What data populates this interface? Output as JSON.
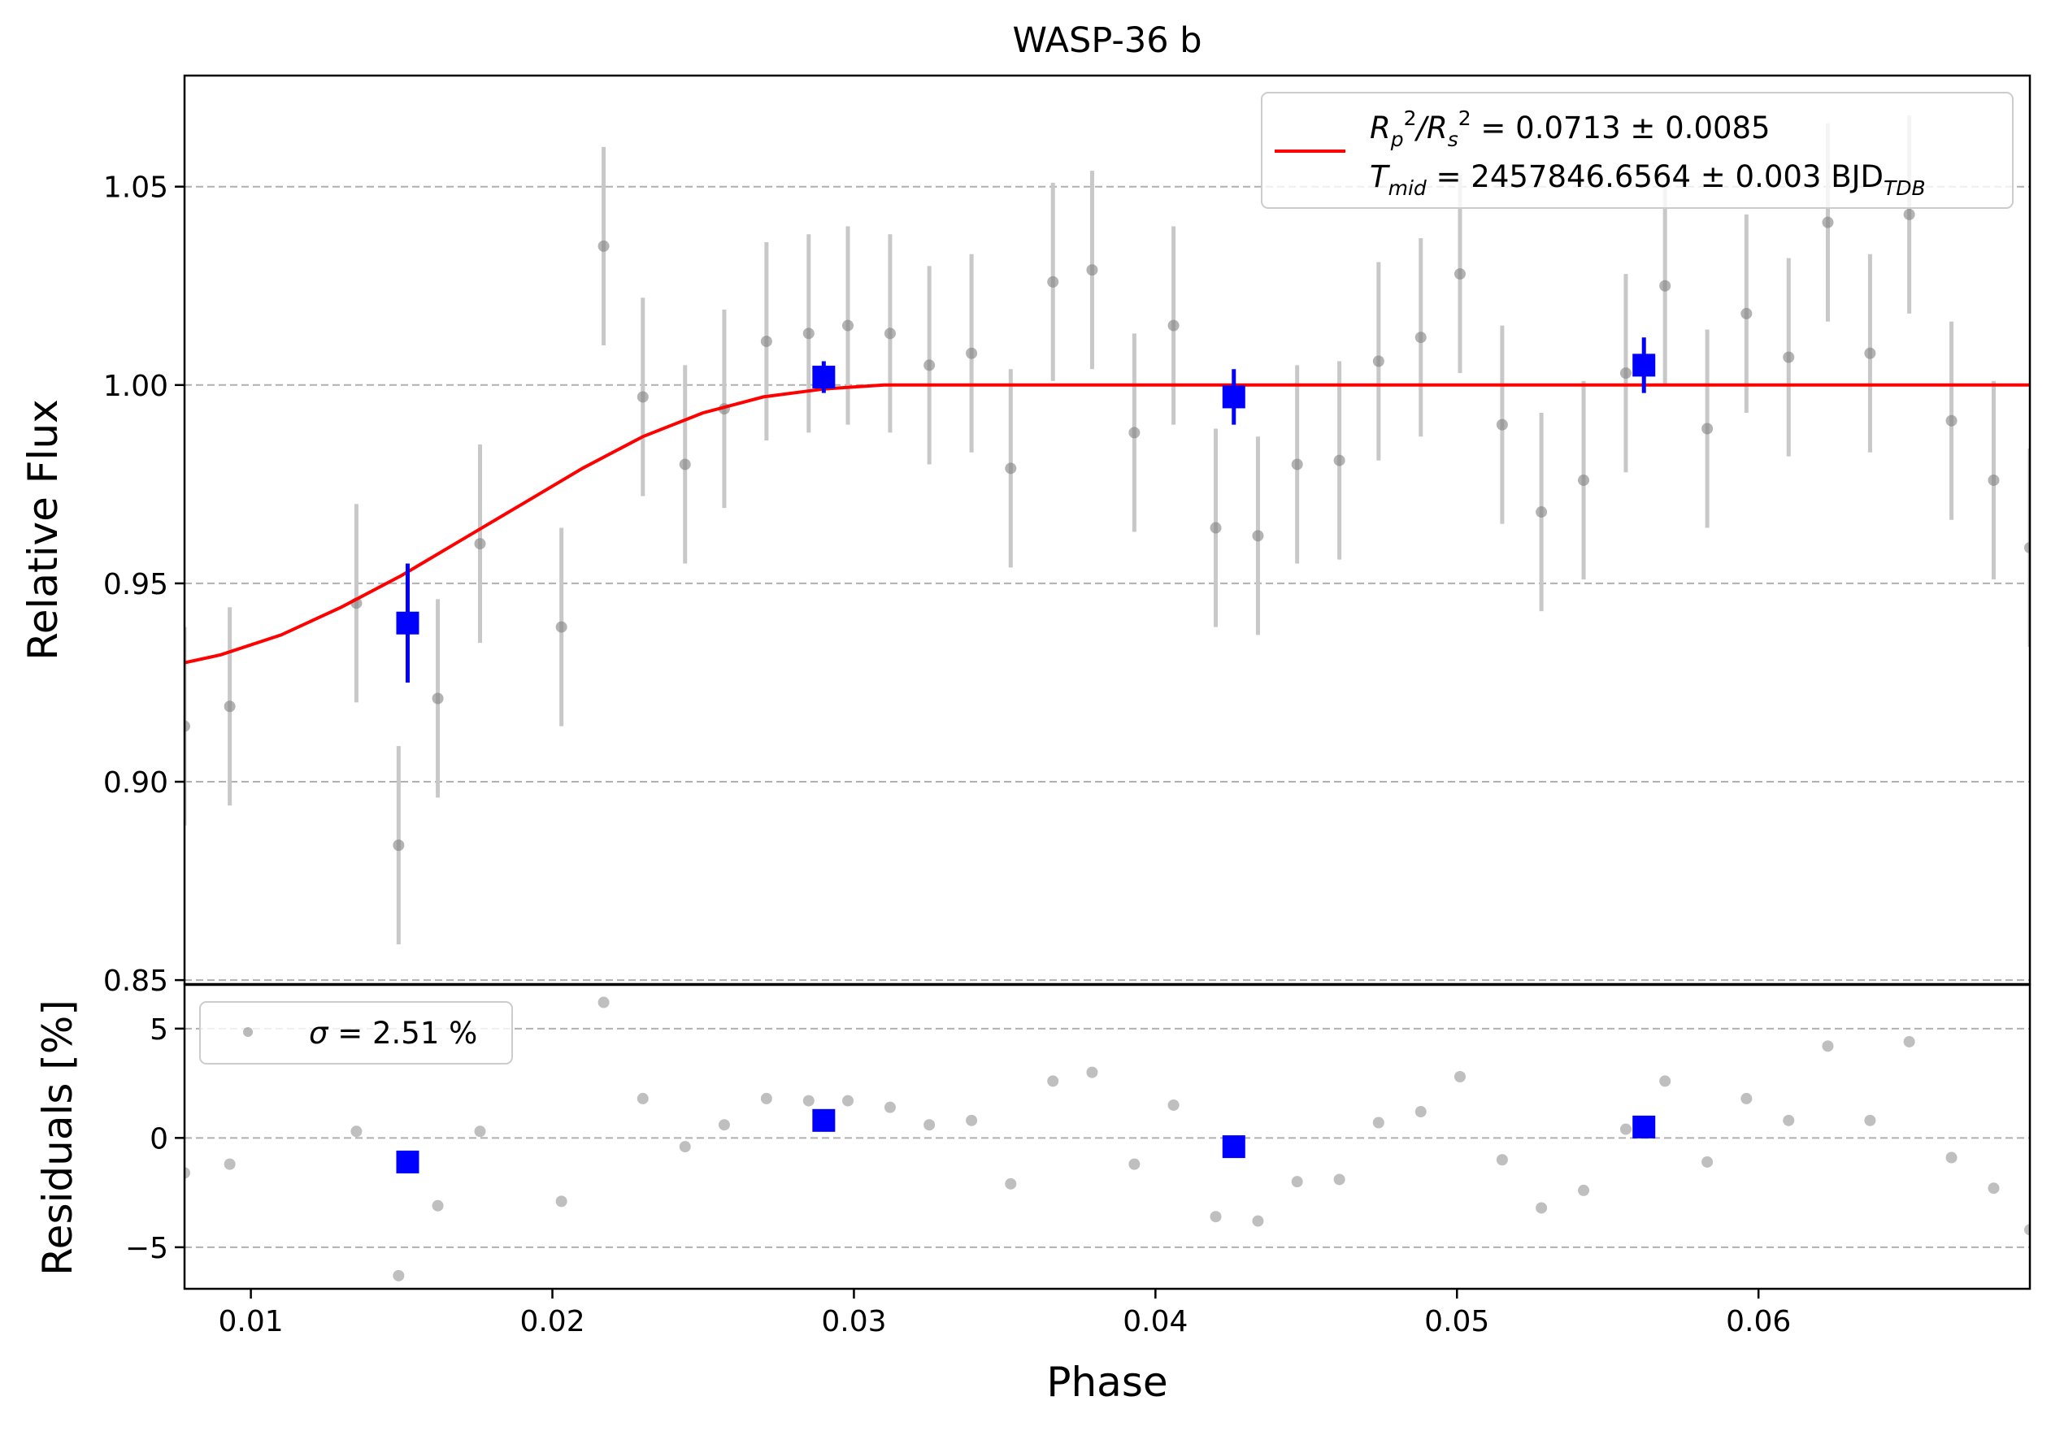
{
  "chart_data": [
    {
      "type": "scatter",
      "panel": "main",
      "title": "WASP-36 b",
      "xlabel": "",
      "ylabel": "Relative Flux",
      "xlim": [
        0.0078,
        0.069
      ],
      "ylim": [
        0.849,
        1.078
      ],
      "yticks": [
        0.85,
        0.9,
        0.95,
        1.0,
        1.05
      ],
      "ytick_labels": [
        "0.85",
        "0.90",
        "0.95",
        "1.00",
        "1.05"
      ],
      "grid": "horizontal dashed",
      "legend": {
        "placement": "top-right",
        "line_label_parts": [
          "R",
          "p",
          "2",
          "/R",
          "s",
          "2",
          " = 0.0713 ± 0.0085"
        ],
        "line2_parts": [
          "T",
          "mid",
          " = 2457846.6564 ± 0.003 BJD",
          "TDB"
        ]
      },
      "colors": {
        "raw": "#808080",
        "raw_err": "#c8c8c8",
        "binned": "#0000ff",
        "model": "#ff0000",
        "grid": "#b0b0b0"
      },
      "raw": {
        "x": [
          0.0078,
          0.0093,
          0.0135,
          0.0149,
          0.0162,
          0.0176,
          0.0203,
          0.0217,
          0.023,
          0.0244,
          0.0257,
          0.0271,
          0.0285,
          0.0298,
          0.0312,
          0.0325,
          0.0339,
          0.0352,
          0.0366,
          0.0379,
          0.0393,
          0.0406,
          0.042,
          0.0434,
          0.0447,
          0.0461,
          0.0474,
          0.0488,
          0.0501,
          0.0515,
          0.0528,
          0.0542,
          0.0556,
          0.0569,
          0.0583,
          0.0596,
          0.061,
          0.0623,
          0.0637,
          0.065,
          0.0664,
          0.0678,
          0.069
        ],
        "y": [
          0.914,
          0.919,
          0.945,
          0.884,
          0.921,
          0.96,
          0.939,
          1.035,
          0.997,
          0.98,
          0.994,
          1.011,
          1.013,
          1.015,
          1.013,
          1.005,
          1.008,
          0.979,
          1.026,
          1.029,
          0.988,
          1.015,
          0.964,
          0.962,
          0.98,
          0.981,
          1.006,
          1.012,
          1.028,
          0.99,
          0.968,
          0.976,
          1.003,
          1.025,
          0.989,
          1.018,
          1.007,
          1.041,
          1.008,
          1.043,
          0.991,
          0.976,
          0.959
        ],
        "yerr": 0.025
      },
      "binned": {
        "x": [
          0.0152,
          0.029,
          0.0426,
          0.0562
        ],
        "y": [
          0.94,
          1.002,
          0.997,
          1.005
        ],
        "yerr": [
          0.015,
          0.004,
          0.007,
          0.007
        ]
      },
      "model": {
        "x": [
          0.0078,
          0.009,
          0.011,
          0.013,
          0.015,
          0.017,
          0.019,
          0.021,
          0.023,
          0.025,
          0.027,
          0.029,
          0.031,
          0.069
        ],
        "y": [
          0.93,
          0.932,
          0.937,
          0.944,
          0.952,
          0.961,
          0.97,
          0.979,
          0.987,
          0.993,
          0.997,
          0.999,
          1.0,
          1.0
        ]
      }
    },
    {
      "type": "scatter",
      "panel": "residuals",
      "xlabel": "Phase",
      "ylabel": "Residuals [%]",
      "xlim": [
        0.0078,
        0.069
      ],
      "ylim": [
        -6.9,
        7.0
      ],
      "xticks": [
        0.01,
        0.02,
        0.03,
        0.04,
        0.05,
        0.06
      ],
      "xtick_labels": [
        "0.01",
        "0.02",
        "0.03",
        "0.04",
        "0.05",
        "0.06"
      ],
      "yticks": [
        -5,
        0,
        5
      ],
      "ytick_labels": [
        "−5",
        "0",
        "5"
      ],
      "grid": "horizontal dashed",
      "legend": {
        "placement": "top-left",
        "label_parts": [
          "σ",
          " = 2.51 %"
        ]
      },
      "raw": {
        "x": [
          0.0078,
          0.0093,
          0.0135,
          0.0149,
          0.0162,
          0.0176,
          0.0203,
          0.0217,
          0.023,
          0.0244,
          0.0257,
          0.0271,
          0.0285,
          0.0298,
          0.0312,
          0.0325,
          0.0339,
          0.0352,
          0.0366,
          0.0379,
          0.0393,
          0.0406,
          0.042,
          0.0434,
          0.0447,
          0.0461,
          0.0474,
          0.0488,
          0.0501,
          0.0515,
          0.0528,
          0.0542,
          0.0556,
          0.0569,
          0.0583,
          0.0596,
          0.061,
          0.0623,
          0.0637,
          0.065,
          0.0664,
          0.0678,
          0.069
        ],
        "y": [
          -1.6,
          -1.2,
          0.3,
          -6.3,
          -3.1,
          0.3,
          -2.9,
          6.2,
          1.8,
          -0.4,
          0.6,
          1.8,
          1.7,
          1.7,
          1.4,
          0.6,
          0.8,
          -2.1,
          2.6,
          3.0,
          -1.2,
          1.5,
          -3.6,
          -3.8,
          -2.0,
          -1.9,
          0.7,
          1.2,
          2.8,
          -1.0,
          -3.2,
          -2.4,
          0.4,
          2.6,
          -1.1,
          1.8,
          0.8,
          4.2,
          0.8,
          4.4,
          -0.9,
          -2.3,
          -4.2
        ]
      },
      "binned": {
        "x": [
          0.0152,
          0.029,
          0.0426,
          0.0562
        ],
        "y": [
          -1.1,
          0.8,
          -0.4,
          0.5
        ]
      }
    }
  ]
}
